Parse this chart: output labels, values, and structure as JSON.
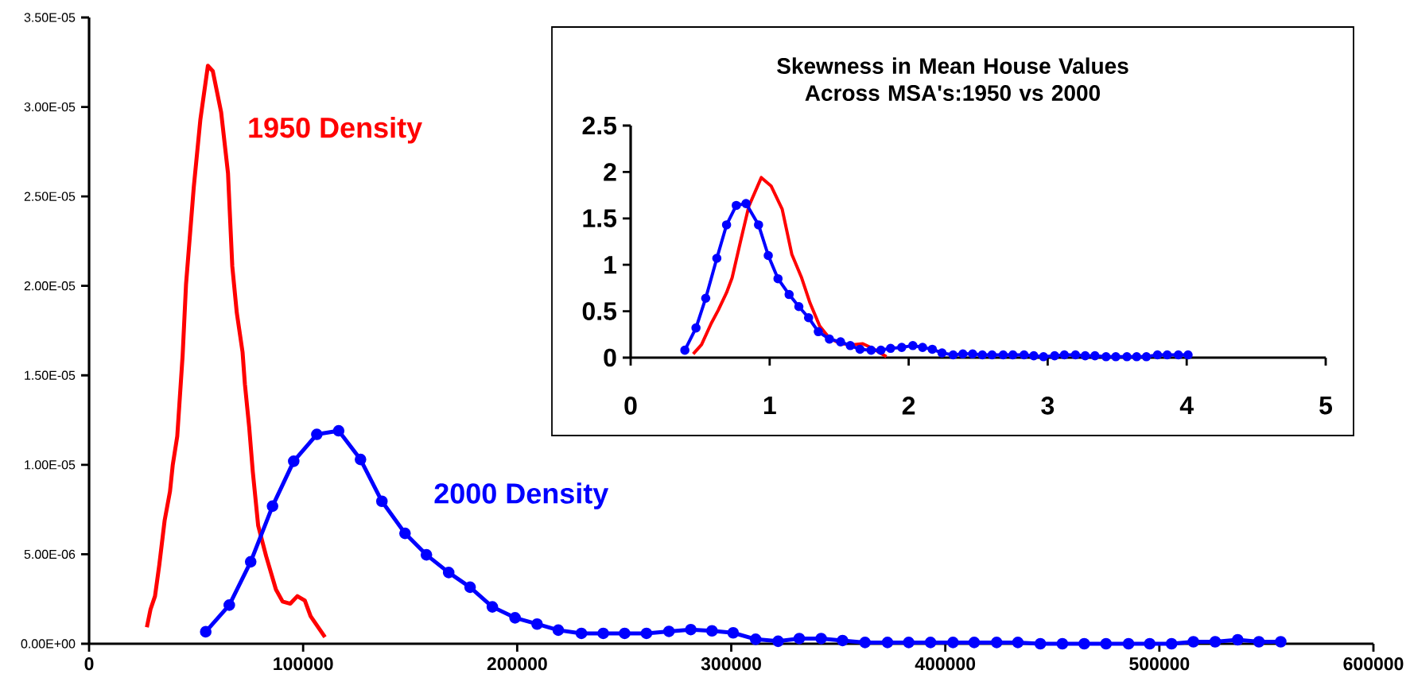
{
  "chart_data": [
    {
      "type": "line",
      "xlim": [
        0,
        600000
      ],
      "ylim": [
        0,
        3.5e-05
      ],
      "xticks": [
        0,
        100000,
        200000,
        300000,
        400000,
        500000,
        600000
      ],
      "yticks": [
        {
          "value": 0,
          "label": "0.00E+00"
        },
        {
          "value": 5e-06,
          "label": "5.00E-06"
        },
        {
          "value": 1e-05,
          "label": "1.00E-05"
        },
        {
          "value": 1.5e-05,
          "label": "1.50E-05"
        },
        {
          "value": 2e-05,
          "label": "2.00E-05"
        },
        {
          "value": 2.5e-05,
          "label": "2.50E-05"
        },
        {
          "value": 3e-05,
          "label": "3.00E-05"
        },
        {
          "value": 3.5e-05,
          "label": "3.50E-05"
        }
      ],
      "series": [
        {
          "name": "1950 Density",
          "color": "#ff0000",
          "marker": "none",
          "x": [
            27000,
            28700,
            30800,
            32800,
            35300,
            37800,
            39100,
            41200,
            43700,
            45300,
            48900,
            52000,
            55500,
            57800,
            61700,
            64900,
            66900,
            69000,
            71700,
            72800,
            74800,
            76500,
            79000,
            82700,
            87300,
            90400,
            94000,
            97300,
            100800,
            103500,
            110200
          ],
          "values": [
            9.2e-07,
            1.92e-06,
            2.66e-06,
            4.4e-06,
            6.89e-06,
            8.51e-06,
            1e-05,
            1.16e-05,
            1.61e-05,
            2.01e-05,
            2.55e-05,
            2.93e-05,
            3.23e-05,
            3.2e-05,
            2.97e-05,
            2.63e-05,
            2.11e-05,
            1.85e-05,
            1.63e-05,
            1.45e-05,
            1.21e-05,
            9.6e-06,
            6.6e-06,
            4.9e-06,
            3.03e-06,
            2.36e-06,
            2.24e-06,
            2.66e-06,
            2.41e-06,
            1.54e-06,
            3.7e-07
          ]
        },
        {
          "name": "2000 Density",
          "color": "#0000ff",
          "marker": "circle",
          "x": [
            54500,
            65500,
            75500,
            85700,
            95600,
            106400,
            116600,
            126800,
            136800,
            147600,
            157600,
            168000,
            178000,
            188400,
            199000,
            209300,
            219200,
            230000,
            240200,
            250200,
            260400,
            270900,
            281100,
            291000,
            300900,
            311400,
            321900,
            331800,
            342000,
            352000,
            362500,
            373000,
            382900,
            393100,
            403600,
            413500,
            424000,
            433900,
            444400,
            454700,
            464900,
            475100,
            485600,
            495500,
            505700,
            515900,
            526100,
            536600,
            546500,
            556700
          ],
          "values": [
            6.7e-07,
            2.16e-06,
            4.58e-06,
            7.69e-06,
            1.02e-05,
            1.17e-05,
            1.19e-05,
            1.03e-05,
            7.96e-06,
            6.17e-06,
            4.97e-06,
            3.98e-06,
            3.16e-06,
            2.06e-06,
            1.45e-06,
            1.1e-06,
            7.6e-07,
            5.8e-07,
            5.8e-07,
            5.8e-07,
            5.8e-07,
            6.9e-07,
            7.9e-07,
            7.2e-07,
            6.1e-07,
            2.5e-07,
            1.4e-07,
            2.9e-07,
            2.9e-07,
            1.8e-07,
            7e-08,
            7e-08,
            7e-08,
            7e-08,
            7e-08,
            7e-08,
            7e-08,
            7e-08,
            0,
            0,
            0,
            0,
            0,
            0,
            0,
            1.1e-07,
            1.1e-07,
            2.2e-07,
            1.1e-07,
            1.1e-07
          ]
        }
      ]
    },
    {
      "type": "line",
      "title": "Skewness in Mean House Values Across MSA's:1950 vs 2000",
      "xlim": [
        0,
        5
      ],
      "ylim": [
        0,
        2.5
      ],
      "xticks": [
        0,
        1,
        2,
        3,
        4,
        5
      ],
      "yticks": [
        0,
        0.5,
        1,
        1.5,
        2,
        2.5
      ],
      "series": [
        {
          "color": "#ff0000",
          "marker": "none",
          "x": [
            0.45,
            0.51,
            0.58,
            0.63,
            0.69,
            0.73,
            0.79,
            0.85,
            0.94,
            1.01,
            1.09,
            1.16,
            1.23,
            1.29,
            1.36,
            1.43,
            1.51,
            1.6,
            1.67,
            1.74,
            1.84
          ],
          "values": [
            0.04,
            0.14,
            0.37,
            0.51,
            0.7,
            0.86,
            1.25,
            1.63,
            1.94,
            1.85,
            1.6,
            1.11,
            0.86,
            0.59,
            0.34,
            0.21,
            0.15,
            0.14,
            0.15,
            0.1,
            0.01
          ]
        },
        {
          "color": "#0000ff",
          "marker": "circle",
          "x": [
            0.39,
            0.47,
            0.54,
            0.62,
            0.69,
            0.76,
            0.83,
            0.92,
            0.99,
            1.06,
            1.14,
            1.21,
            1.28,
            1.35,
            1.43,
            1.51,
            1.58,
            1.65,
            1.73,
            1.8,
            1.87,
            1.95,
            2.03,
            2.1,
            2.17,
            2.24,
            2.32,
            2.39,
            2.46,
            2.53,
            2.6,
            2.68,
            2.75,
            2.83,
            2.9,
            2.97,
            3.05,
            3.12,
            3.2,
            3.27,
            3.34,
            3.42,
            3.49,
            3.57,
            3.64,
            3.71,
            3.79,
            3.86,
            3.94,
            4.01
          ],
          "values": [
            0.08,
            0.32,
            0.64,
            1.07,
            1.43,
            1.64,
            1.66,
            1.43,
            1.1,
            0.85,
            0.68,
            0.55,
            0.43,
            0.28,
            0.2,
            0.17,
            0.13,
            0.09,
            0.08,
            0.08,
            0.1,
            0.11,
            0.13,
            0.11,
            0.09,
            0.05,
            0.03,
            0.04,
            0.04,
            0.03,
            0.03,
            0.03,
            0.03,
            0.03,
            0.02,
            0.01,
            0.02,
            0.03,
            0.03,
            0.02,
            0.02,
            0.01,
            0.01,
            0.01,
            0.01,
            0.01,
            0.03,
            0.03,
            0.03,
            0.03
          ]
        }
      ]
    }
  ]
}
